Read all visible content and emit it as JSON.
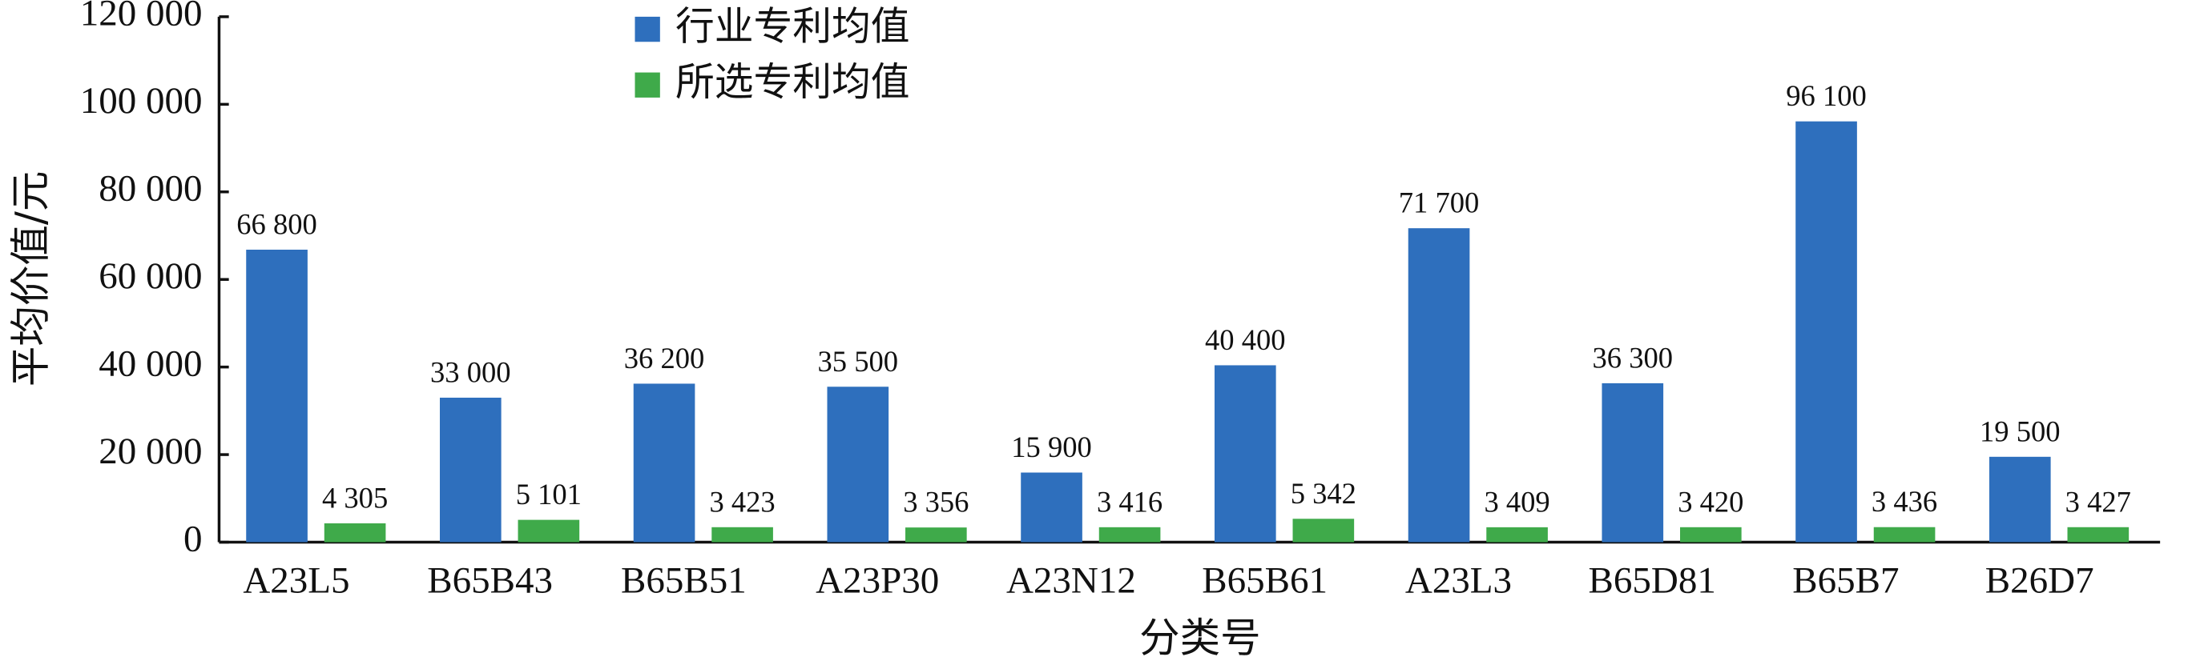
{
  "chart_data": {
    "type": "bar",
    "y_label": "平均价值/元",
    "x_label": "分类号",
    "categories": [
      "A23L5",
      "B65B43",
      "B65B51",
      "A23P30",
      "A23N12",
      "B65B61",
      "A23L3",
      "B65D81",
      "B65B7",
      "B26D7"
    ],
    "series": [
      {
        "name": "行业专利均值",
        "color": "#2e6fbd",
        "values": [
          66800,
          33000,
          36200,
          35500,
          15900,
          40400,
          71700,
          36300,
          96100,
          19500
        ],
        "value_labels": [
          "66 800",
          "33 000",
          "36 200",
          "35 500",
          "15 900",
          "40 400",
          "71 700",
          "36 300",
          "96 100",
          "19 500"
        ]
      },
      {
        "name": "所选专利均值",
        "color": "#3faa4a",
        "values": [
          4305,
          5101,
          3423,
          3356,
          3416,
          5342,
          3409,
          3420,
          3436,
          3427
        ],
        "value_labels": [
          "4 305",
          "5 101",
          "3 423",
          "3 356",
          "3 416",
          "5 342",
          "3 409",
          "3 420",
          "3 436",
          "3 427"
        ]
      }
    ],
    "ylim": [
      0,
      120000
    ],
    "yticks": [
      0,
      {
        "value": 20000,
        "label": "20 000"
      },
      {
        "value": 40000,
        "label": "40 000"
      },
      {
        "value": 60000,
        "label": "60 000"
      },
      {
        "value": 80000,
        "label": "80 000"
      },
      {
        "value": 100000,
        "label": "100 000"
      },
      {
        "value": 120000,
        "label": "120 000"
      }
    ],
    "grid": false,
    "legend": "top"
  }
}
